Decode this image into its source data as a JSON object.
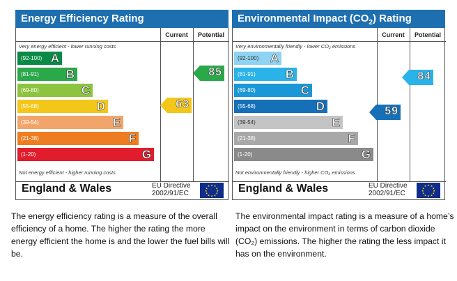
{
  "energy": {
    "title": "Energy Efficiency Rating",
    "col_current": "Current",
    "col_potential": "Potential",
    "top_note": "Very energy efficient - lower running costs",
    "bottom_note": "Not energy efficient - higher running costs",
    "bands": [
      {
        "range": "(92-100)",
        "letter": "A",
        "color": "#0a8a45"
      },
      {
        "range": "(81-91)",
        "letter": "B",
        "color": "#2aa84a"
      },
      {
        "range": "(69-80)",
        "letter": "C",
        "color": "#8cc43f"
      },
      {
        "range": "(55-68)",
        "letter": "D",
        "color": "#f3c61a"
      },
      {
        "range": "(39-54)",
        "letter": "E",
        "color": "#f2a56a"
      },
      {
        "range": "(21-38)",
        "letter": "F",
        "color": "#ee7d22"
      },
      {
        "range": "(1-20)",
        "letter": "G",
        "color": "#e01c2d"
      }
    ],
    "current": {
      "value": "63",
      "band": "D",
      "color": "#f3c61a"
    },
    "potential": {
      "value": "85",
      "band": "B",
      "color": "#2aa84a"
    },
    "region": "England & Wales",
    "directive_line1": "EU Directive",
    "directive_line2": "2002/91/EC",
    "description": "The energy efficiency rating is a measure of the overall efficiency of a home. The higher the rating the more energy efficient the home is and the lower the fuel bills will be."
  },
  "environment": {
    "title_pre": "Environmental Impact (CO",
    "title_sub": "2",
    "title_post": ") Rating",
    "col_current": "Current",
    "col_potential": "Potential",
    "top_note": "Very environmentally friendly - lower CO₂ emissions",
    "bottom_note": "Not environmentally friendly - higher CO₂ emissions",
    "bands": [
      {
        "range": "(92-100)",
        "letter": "A",
        "color": "#8fd3f2"
      },
      {
        "range": "(81-91)",
        "letter": "B",
        "color": "#29b3e8"
      },
      {
        "range": "(69-80)",
        "letter": "C",
        "color": "#1a97d6"
      },
      {
        "range": "(55-68)",
        "letter": "D",
        "color": "#1670b8"
      },
      {
        "range": "(39-54)",
        "letter": "E",
        "color": "#c4c4c4"
      },
      {
        "range": "(21-38)",
        "letter": "F",
        "color": "#a8a8a8"
      },
      {
        "range": "(1-20)",
        "letter": "G",
        "color": "#8a8a8a"
      }
    ],
    "current": {
      "value": "59",
      "band": "D",
      "color": "#1670b8"
    },
    "potential": {
      "value": "84",
      "band": "B",
      "color": "#29b3e8"
    },
    "region": "England & Wales",
    "directive_line1": "EU Directive",
    "directive_line2": "2002/91/EC",
    "description": "The environmental impact rating is a measure of a home’s impact on the environment in terms of carbon dioxide (CO₂) emissions. The higher the rating the less impact it has on the environment."
  }
}
